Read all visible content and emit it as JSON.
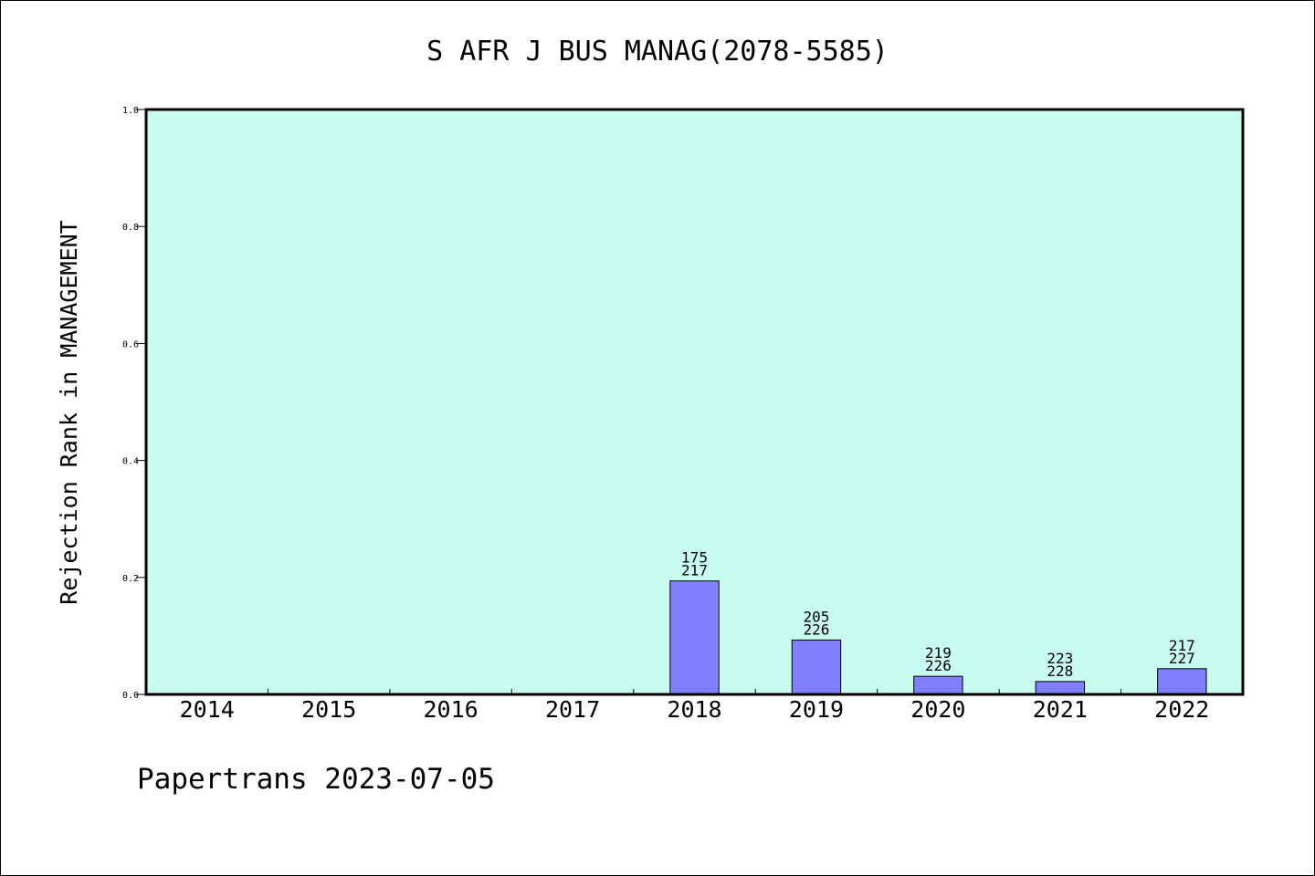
{
  "chart_data": {
    "type": "bar",
    "title": "S AFR J BUS MANAG(2078-5585)",
    "xlabel": "",
    "ylabel": "Rejection Rank in MANAGEMENT",
    "ylim": [
      0.0,
      1.0
    ],
    "yticks": [
      "0.0",
      "0.2",
      "0.4",
      "0.6",
      "0.8",
      "1.0"
    ],
    "categories": [
      "2014",
      "2015",
      "2016",
      "2017",
      "2018",
      "2019",
      "2020",
      "2021",
      "2022"
    ],
    "values": [
      0,
      0,
      0,
      0,
      0.194,
      0.093,
      0.031,
      0.022,
      0.044
    ],
    "bar_labels": [
      null,
      null,
      null,
      null,
      [
        "175",
        "217"
      ],
      [
        "205",
        "226"
      ],
      [
        "219",
        "226"
      ],
      [
        "223",
        "228"
      ],
      [
        "217",
        "227"
      ]
    ],
    "grid": false,
    "legend": "none",
    "colors": {
      "plot_background": "#c8fcef",
      "bar_fill": "#8080ff",
      "bar_stroke": "#000000"
    }
  },
  "footer": {
    "text": "Papertrans 2023-07-05"
  }
}
